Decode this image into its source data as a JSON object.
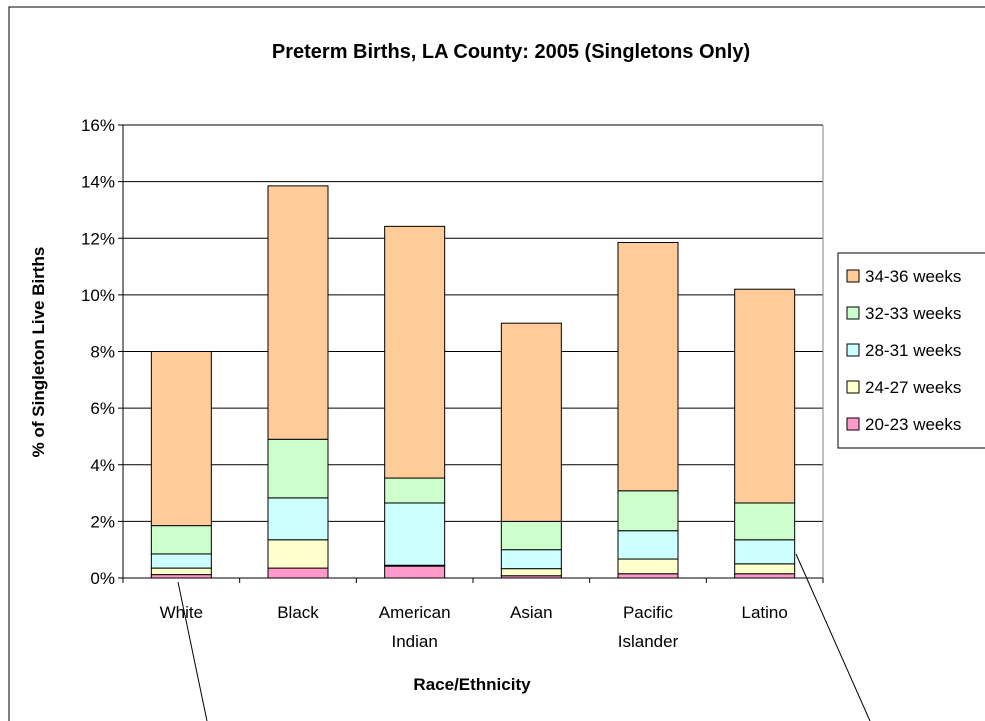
{
  "chart_data": {
    "type": "bar",
    "stacked": true,
    "title": "Preterm Births, LA County: 2005 (Singletons Only)",
    "xlabel": "Race/Ethnicity",
    "ylabel": "% of Singleton Live Births",
    "ylim": [
      0,
      16
    ],
    "yticks": [
      0,
      2,
      4,
      6,
      8,
      10,
      12,
      14,
      16
    ],
    "ytick_labels": [
      "0%",
      "2%",
      "4%",
      "6%",
      "8%",
      "10%",
      "12%",
      "14%",
      "16%"
    ],
    "grid": true,
    "legend_position": "right",
    "categories": [
      [
        "White"
      ],
      [
        "Black"
      ],
      [
        "American",
        "Indian"
      ],
      [
        "Asian"
      ],
      [
        "Pacific",
        "Islander"
      ],
      [
        "Latino"
      ]
    ],
    "series": [
      {
        "name": "20-23 weeks",
        "color": "#FF99CC",
        "values": [
          0.12,
          0.35,
          0.42,
          0.08,
          0.15,
          0.15
        ]
      },
      {
        "name": "24-27 weeks",
        "color": "#FFFFCC",
        "values": [
          0.23,
          1.0,
          0.03,
          0.25,
          0.52,
          0.35
        ]
      },
      {
        "name": "28-31 weeks",
        "color": "#CCFFFF",
        "values": [
          0.5,
          1.48,
          2.2,
          0.67,
          1.0,
          0.85
        ]
      },
      {
        "name": "32-33 weeks",
        "color": "#CCFFCC",
        "values": [
          1.0,
          2.07,
          0.88,
          1.0,
          1.41,
          1.3
        ]
      },
      {
        "name": "34-36 weeks",
        "color": "#FFCC99",
        "values": [
          6.15,
          8.95,
          8.89,
          7.0,
          8.77,
          7.55
        ]
      }
    ]
  }
}
